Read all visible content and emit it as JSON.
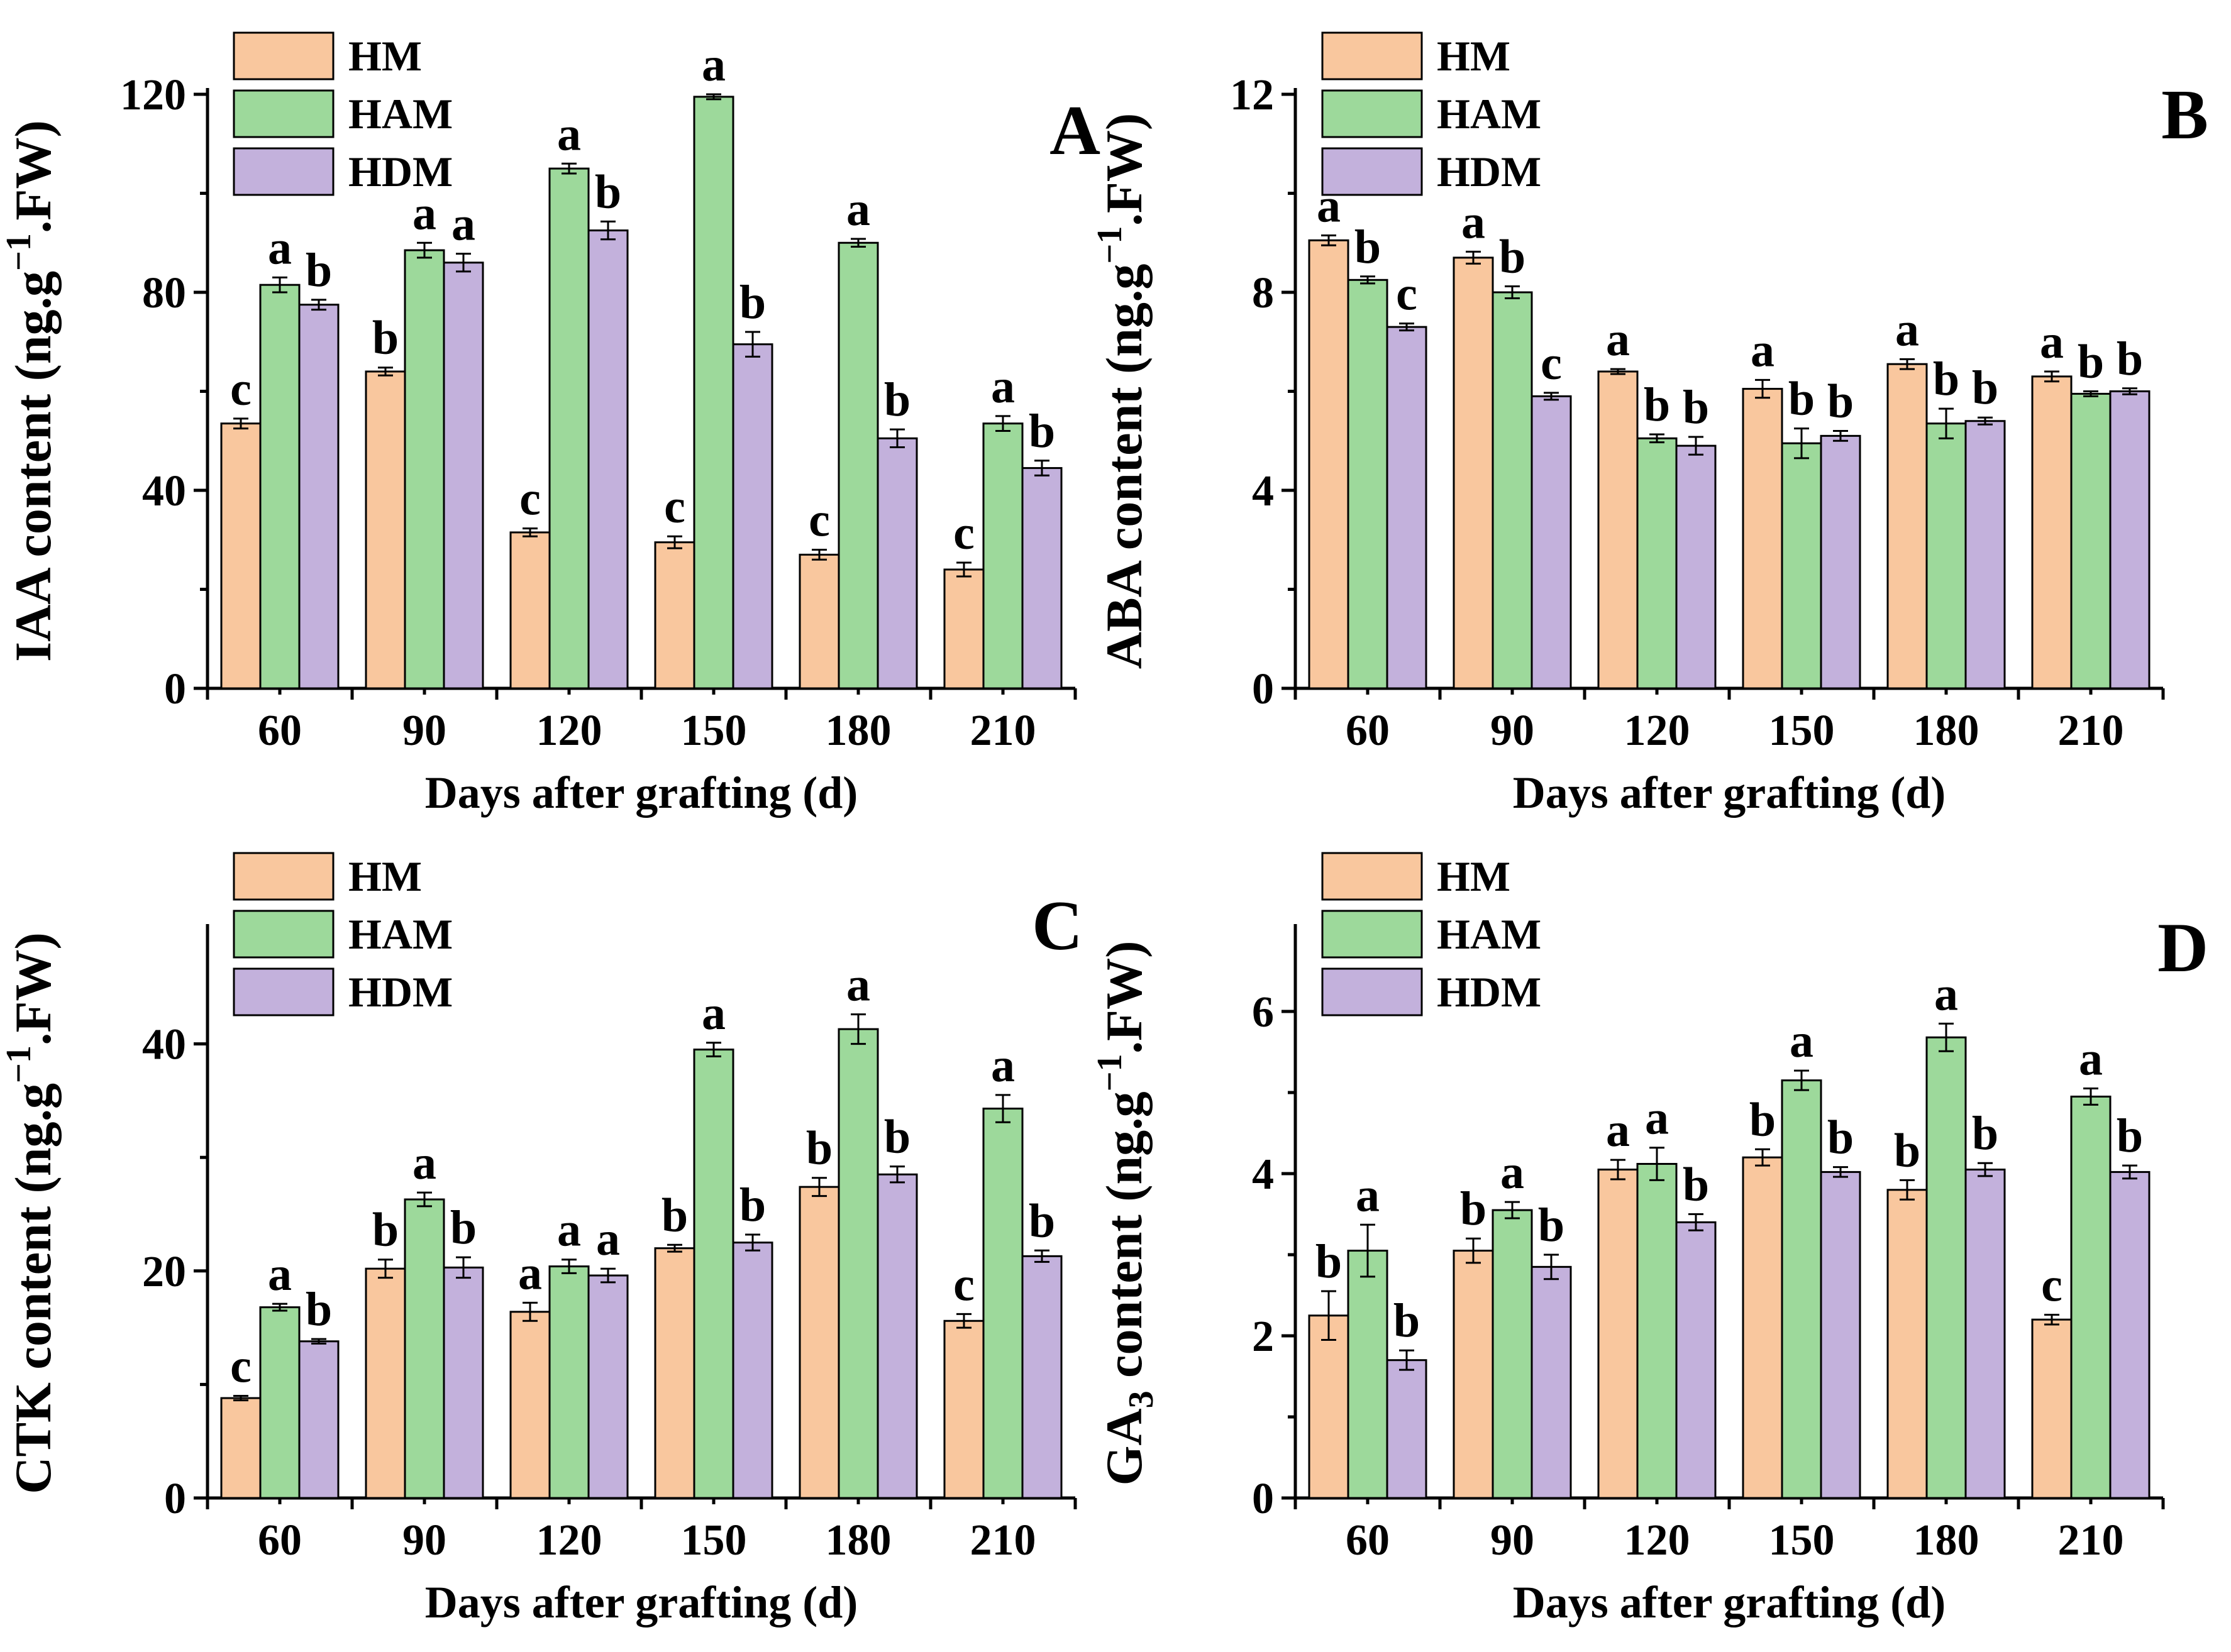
{
  "colors": {
    "HM": "#F9C79E",
    "HAM": "#9DD99B",
    "HDM": "#C3B1DC"
  },
  "chart_data": [
    {
      "type": "bar",
      "panel": "A",
      "title": "A",
      "xlabel": "Days after grafting (d)",
      "ylabel": "IAA content (ng.g",
      "ylabel_sup": "−1",
      "ylabel_tail": ".FW)",
      "ylim": [
        0,
        120
      ],
      "yticks": [
        0,
        40,
        80,
        120
      ],
      "categories": [
        "60",
        "90",
        "120",
        "150",
        "180",
        "210"
      ],
      "series": [
        {
          "name": "HM",
          "values": [
            53.5,
            64,
            31.5,
            29.5,
            27,
            24
          ],
          "errors": [
            1,
            0.8,
            0.8,
            1.2,
            1,
            1.4
          ],
          "letters": [
            "c",
            "b",
            "c",
            "c",
            "c",
            "c"
          ]
        },
        {
          "name": "HAM",
          "values": [
            81.5,
            88.5,
            105,
            119.5,
            90,
            53.5
          ],
          "errors": [
            1.5,
            1.5,
            1,
            0.5,
            0.8,
            1.5
          ],
          "letters": [
            "a",
            "a",
            "a",
            "a",
            "a",
            "a"
          ]
        },
        {
          "name": "HDM",
          "values": [
            77.5,
            86,
            92.5,
            69.5,
            50.5,
            44.5
          ],
          "errors": [
            1,
            1.8,
            1.8,
            2.5,
            1.8,
            1.5
          ],
          "letters": [
            "b",
            "a",
            "b",
            "b",
            "b",
            "b"
          ]
        }
      ]
    },
    {
      "type": "bar",
      "panel": "B",
      "title": "B",
      "xlabel": "Days after grafting (d)",
      "ylabel": "ABA content (ng.g",
      "ylabel_sup": "−1",
      "ylabel_tail": ".FW)",
      "ylim": [
        0,
        12
      ],
      "yticks": [
        0,
        4,
        8,
        12
      ],
      "categories": [
        "60",
        "90",
        "120",
        "150",
        "180",
        "210"
      ],
      "series": [
        {
          "name": "HM",
          "values": [
            9.05,
            8.7,
            6.4,
            6.05,
            6.55,
            6.3
          ],
          "errors": [
            0.1,
            0.12,
            0.05,
            0.18,
            0.1,
            0.1
          ],
          "letters": [
            "a",
            "a",
            "a",
            "a",
            "a",
            "a"
          ]
        },
        {
          "name": "HAM",
          "values": [
            8.25,
            8.0,
            5.05,
            4.95,
            5.35,
            5.95
          ],
          "errors": [
            0.07,
            0.12,
            0.08,
            0.3,
            0.3,
            0.05
          ],
          "letters": [
            "b",
            "b",
            "b",
            "b",
            "b",
            "b"
          ]
        },
        {
          "name": "HDM",
          "values": [
            7.3,
            5.9,
            4.9,
            5.1,
            5.4,
            6.0
          ],
          "errors": [
            0.07,
            0.07,
            0.18,
            0.1,
            0.07,
            0.06
          ],
          "letters": [
            "c",
            "c",
            "b",
            "b",
            "b",
            "b"
          ]
        }
      ]
    },
    {
      "type": "bar",
      "panel": "C",
      "title": "C",
      "xlabel": "Days after grafting (d)",
      "ylabel": "CTK content (ng.g",
      "ylabel_sup": "−1",
      "ylabel_tail": ".FW)",
      "ylim": [
        0,
        50
      ],
      "yticks": [
        0,
        20,
        40
      ],
      "categories": [
        "60",
        "90",
        "120",
        "150",
        "180",
        "210"
      ],
      "series": [
        {
          "name": "HM",
          "values": [
            8.8,
            20.2,
            16.4,
            22,
            27.4,
            15.6
          ],
          "errors": [
            0.2,
            0.8,
            0.8,
            0.3,
            0.8,
            0.6
          ],
          "letters": [
            "c",
            "b",
            "a",
            "b",
            "b",
            "c"
          ]
        },
        {
          "name": "HAM",
          "values": [
            16.8,
            26.3,
            20.4,
            39.5,
            41.3,
            34.3
          ],
          "errors": [
            0.3,
            0.6,
            0.6,
            0.6,
            1.3,
            1.2
          ],
          "letters": [
            "a",
            "a",
            "a",
            "a",
            "a",
            "a"
          ]
        },
        {
          "name": "HDM",
          "values": [
            13.8,
            20.3,
            19.6,
            22.5,
            28.5,
            21.3
          ],
          "errors": [
            0.2,
            0.9,
            0.6,
            0.7,
            0.7,
            0.5
          ],
          "letters": [
            "b",
            "b",
            "a",
            "b",
            "b",
            "b"
          ]
        }
      ]
    },
    {
      "type": "bar",
      "panel": "D",
      "title": "D",
      "xlabel": "Days after grafting (d)",
      "ylabel": "GA",
      "ylabel_sub": "3",
      "ylabel_tail": " content (ng.g",
      "ylabel_sup": "−1",
      "ylabel_tail2": ".FW)",
      "ylim": [
        0,
        7
      ],
      "yticks": [
        0,
        2,
        4,
        6
      ],
      "categories": [
        "60",
        "90",
        "120",
        "150",
        "180",
        "210"
      ],
      "series": [
        {
          "name": "HM",
          "values": [
            2.25,
            3.05,
            4.05,
            4.2,
            3.8,
            2.2
          ],
          "errors": [
            0.3,
            0.15,
            0.12,
            0.1,
            0.12,
            0.06
          ],
          "letters": [
            "b",
            "b",
            "a",
            "b",
            "b",
            "c"
          ]
        },
        {
          "name": "HAM",
          "values": [
            3.05,
            3.55,
            4.12,
            5.15,
            5.68,
            4.95
          ],
          "errors": [
            0.32,
            0.1,
            0.2,
            0.12,
            0.17,
            0.1
          ],
          "letters": [
            "a",
            "a",
            "a",
            "a",
            "a",
            "a"
          ]
        },
        {
          "name": "HDM",
          "values": [
            1.7,
            2.85,
            3.4,
            4.02,
            4.05,
            4.02
          ],
          "errors": [
            0.12,
            0.15,
            0.1,
            0.06,
            0.08,
            0.08
          ],
          "letters": [
            "b",
            "b",
            "b",
            "b",
            "b",
            "b"
          ]
        }
      ]
    }
  ]
}
